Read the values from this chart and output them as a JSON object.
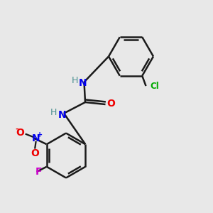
{
  "background_color": "#e8e8e8",
  "bond_color": "#1a1a1a",
  "atom_colors": {
    "N": "#0000ee",
    "O": "#ee0000",
    "F": "#cc00cc",
    "Cl": "#00aa00",
    "H": "#4a9090",
    "C": "#1a1a1a"
  },
  "lw": 1.8,
  "ring_r": 0.105,
  "fig_size": [
    3.0,
    3.0
  ],
  "dpi": 100
}
